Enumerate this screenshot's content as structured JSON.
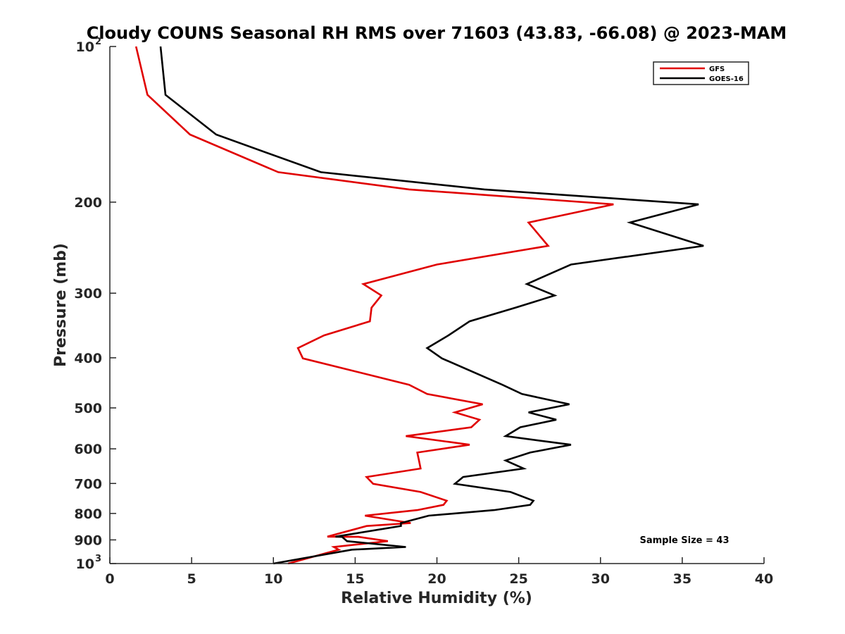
{
  "chart_data": {
    "type": "line",
    "title": "Cloudy COUNS Seasonal RH RMS over 71603 (43.83, -66.08) @ 2023-MAM",
    "xlabel": "Relative Humidity (%)",
    "ylabel": "Pressure (mb)",
    "xlim": [
      0,
      40
    ],
    "ylim": [
      100,
      1000
    ],
    "yscale": "log",
    "y_reversed": true,
    "x_ticks": [
      "0",
      "5",
      "10",
      "15",
      "20",
      "25",
      "30",
      "35",
      "40"
    ],
    "y_ticks": [
      {
        "value": 100,
        "base": "10",
        "exp": "2"
      },
      {
        "value": 200,
        "label": "200"
      },
      {
        "value": 300,
        "label": "300"
      },
      {
        "value": 400,
        "label": "400"
      },
      {
        "value": 500,
        "label": "500"
      },
      {
        "value": 600,
        "label": "600"
      },
      {
        "value": 700,
        "label": "700"
      },
      {
        "value": 800,
        "label": "800"
      },
      {
        "value": 900,
        "label": "900"
      },
      {
        "value": 1000,
        "base": "10",
        "exp": "3"
      }
    ],
    "legend_position": "top-right",
    "annotation": "Sample Size = 43",
    "series": [
      {
        "name": "GFS",
        "color": "#e00000",
        "points": [
          [
            1.6,
            100
          ],
          [
            2.3,
            124
          ],
          [
            4.9,
            148
          ],
          [
            10.3,
            175
          ],
          [
            18.3,
            189
          ],
          [
            30.8,
            202
          ],
          [
            25.6,
            219
          ],
          [
            26.8,
            243
          ],
          [
            20.0,
            264
          ],
          [
            15.5,
            288
          ],
          [
            16.6,
            303
          ],
          [
            16.0,
            320
          ],
          [
            15.9,
            340
          ],
          [
            13.1,
            362
          ],
          [
            11.5,
            383
          ],
          [
            11.8,
            401
          ],
          [
            18.3,
            451
          ],
          [
            19.4,
            470
          ],
          [
            22.8,
            492
          ],
          [
            21.1,
            510
          ],
          [
            22.6,
            527
          ],
          [
            22.1,
            545
          ],
          [
            18.1,
            567
          ],
          [
            22.0,
            589
          ],
          [
            18.8,
            610
          ],
          [
            18.9,
            632
          ],
          [
            19.0,
            655
          ],
          [
            15.7,
            680
          ],
          [
            16.1,
            701
          ],
          [
            19.0,
            727
          ],
          [
            20.6,
            756
          ],
          [
            20.4,
            770
          ],
          [
            18.8,
            788
          ],
          [
            15.6,
            808
          ],
          [
            18.4,
            835
          ],
          [
            15.7,
            846
          ],
          [
            13.3,
            887
          ],
          [
            15.2,
            888
          ],
          [
            17.0,
            905
          ],
          [
            13.7,
            929
          ],
          [
            14.0,
            940
          ],
          [
            10.9,
            1000
          ]
        ]
      },
      {
        "name": "GOES-16",
        "color": "#000000",
        "points": [
          [
            3.1,
            100
          ],
          [
            3.4,
            124
          ],
          [
            6.5,
            148
          ],
          [
            12.9,
            175
          ],
          [
            22.9,
            189
          ],
          [
            36.0,
            202
          ],
          [
            31.8,
            219
          ],
          [
            36.3,
            243
          ],
          [
            28.2,
            264
          ],
          [
            25.5,
            288
          ],
          [
            27.2,
            303
          ],
          [
            24.8,
            320
          ],
          [
            22.0,
            340
          ],
          [
            20.7,
            362
          ],
          [
            19.4,
            383
          ],
          [
            20.3,
            401
          ],
          [
            24.0,
            451
          ],
          [
            25.2,
            470
          ],
          [
            28.1,
            492
          ],
          [
            25.6,
            510
          ],
          [
            27.3,
            527
          ],
          [
            25.1,
            545
          ],
          [
            24.2,
            567
          ],
          [
            28.2,
            589
          ],
          [
            25.7,
            610
          ],
          [
            24.2,
            632
          ],
          [
            25.3,
            655
          ],
          [
            21.6,
            680
          ],
          [
            21.1,
            701
          ],
          [
            24.5,
            727
          ],
          [
            25.9,
            756
          ],
          [
            25.7,
            770
          ],
          [
            23.5,
            788
          ],
          [
            19.5,
            808
          ],
          [
            17.8,
            835
          ],
          [
            17.8,
            846
          ],
          [
            13.8,
            887
          ],
          [
            14.2,
            888
          ],
          [
            14.5,
            905
          ],
          [
            18.1,
            929
          ],
          [
            14.8,
            940
          ],
          [
            10.0,
            1000
          ]
        ]
      }
    ]
  }
}
